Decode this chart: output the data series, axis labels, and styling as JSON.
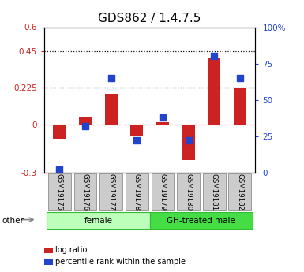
{
  "title": "GDS862 / 1.4.7.5",
  "samples": [
    "GSM19175",
    "GSM19176",
    "GSM19177",
    "GSM19178",
    "GSM19179",
    "GSM19180",
    "GSM19181",
    "GSM19182"
  ],
  "log_ratio": [
    -0.09,
    0.04,
    0.19,
    -0.07,
    0.01,
    -0.22,
    0.41,
    0.225
  ],
  "percentile_rank": [
    2,
    32,
    65,
    22,
    38,
    22,
    80,
    65
  ],
  "groups": [
    {
      "label": "female",
      "start": 0,
      "end": 4,
      "color": "#bbffbb"
    },
    {
      "label": "GH-treated male",
      "start": 4,
      "end": 8,
      "color": "#44dd44"
    }
  ],
  "left_ylim": [
    -0.3,
    0.6
  ],
  "right_ylim": [
    0,
    100
  ],
  "left_yticks": [
    -0.3,
    0,
    0.225,
    0.45,
    0.6
  ],
  "right_yticks": [
    0,
    25,
    50,
    75,
    100
  ],
  "hlines": [
    0.225,
    0.45
  ],
  "hline_zero_color": "#cc2222",
  "hline_dotted_color": "#111111",
  "bar_color": "#cc2222",
  "dot_color": "#2244cc",
  "bar_width": 0.5,
  "dot_size": 28,
  "legend_items": [
    "log ratio",
    "percentile rank within the sample"
  ],
  "legend_colors": [
    "#cc2222",
    "#2244cc"
  ],
  "other_label": "other",
  "bg_color": "#ffffff",
  "plot_bg": "#ffffff",
  "tick_label_fontsize": 7.5,
  "title_fontsize": 11
}
